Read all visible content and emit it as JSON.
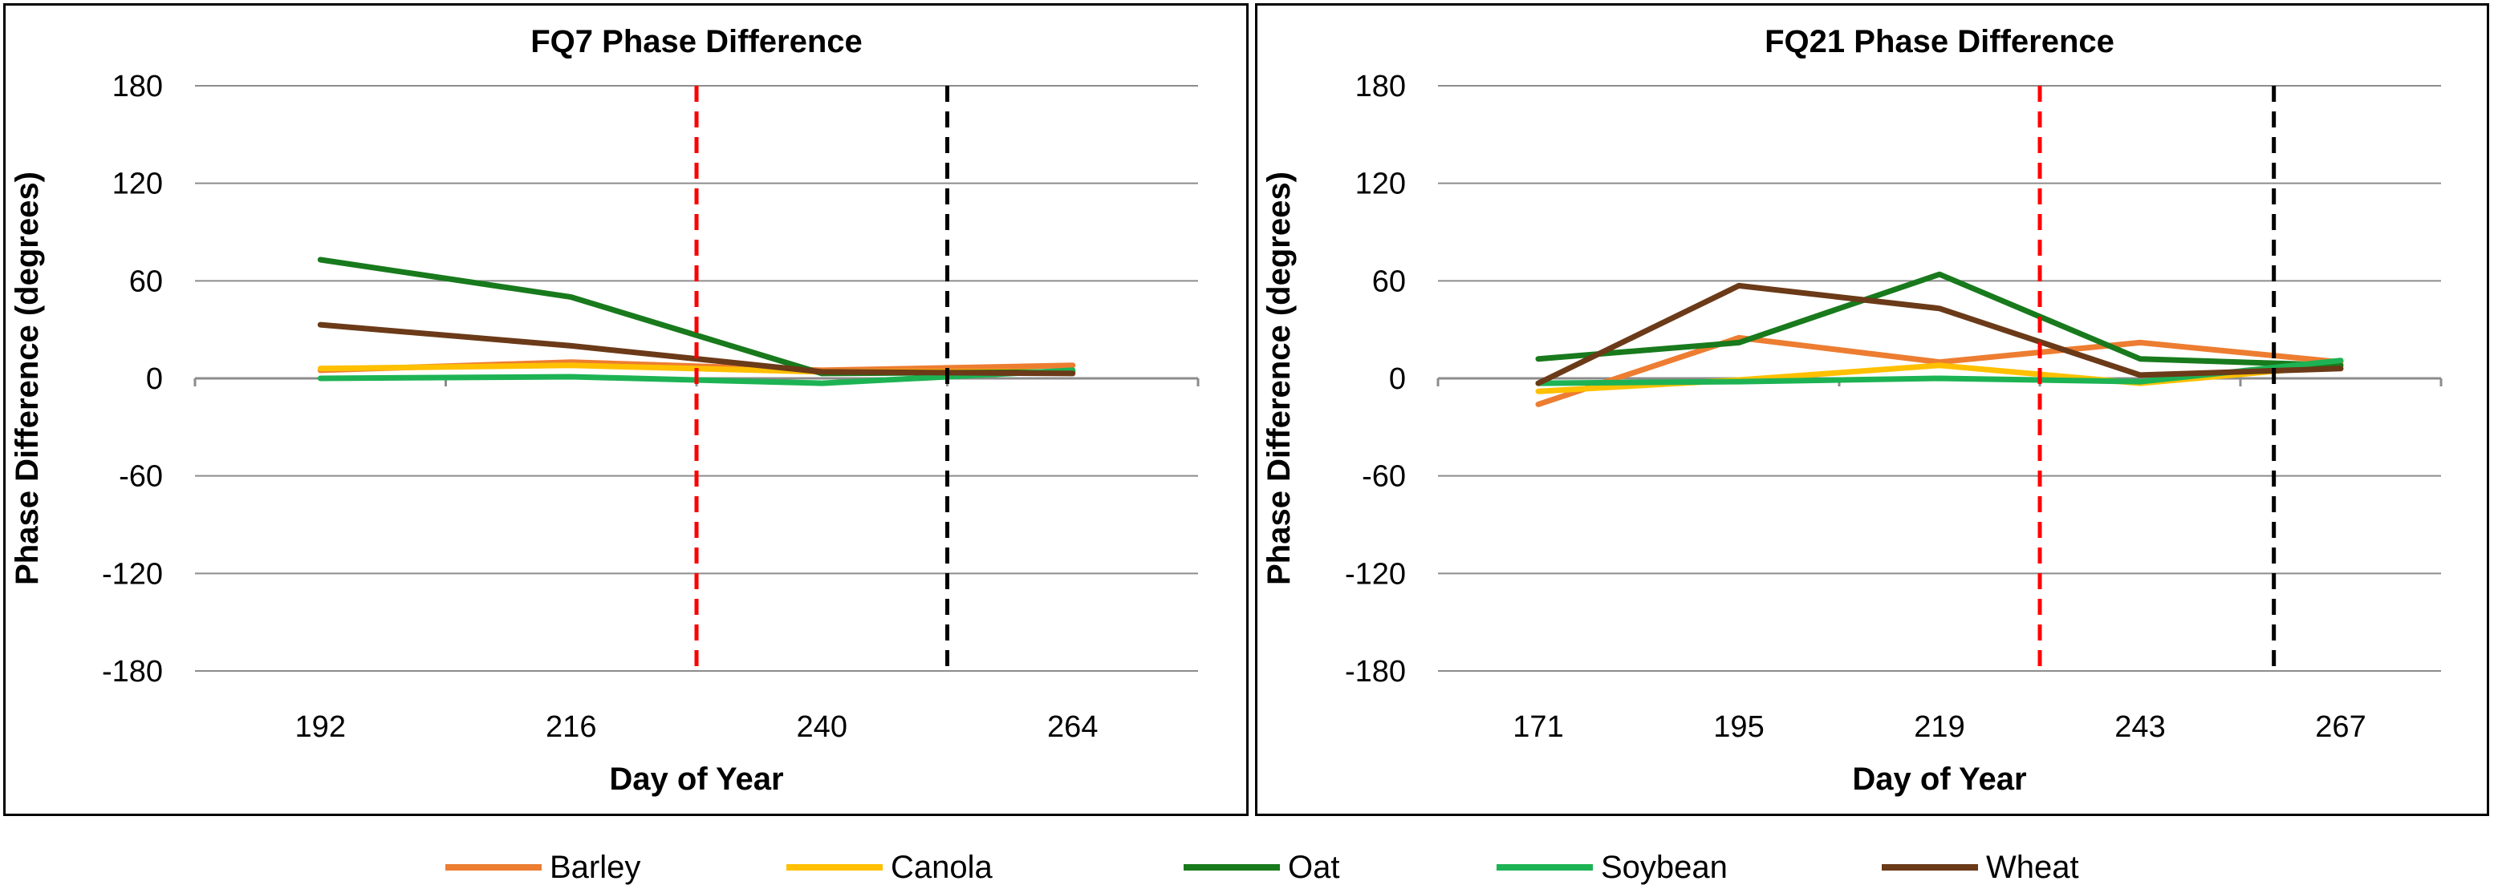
{
  "chart_data": [
    {
      "type": "line",
      "title": "FQ7 Phase Difference",
      "xlabel": "Day of Year",
      "ylabel": "Phase Difference (degrees)",
      "x": [
        192,
        216,
        240,
        264
      ],
      "x_tick_labels": [
        "192",
        "216",
        "240",
        "264"
      ],
      "ylim": [
        -180,
        180
      ],
      "y_ticks": [
        180,
        120,
        60,
        0,
        -60,
        -120,
        -180
      ],
      "y_tick_labels": [
        "180",
        "120",
        "60",
        "0",
        "-60",
        "-120",
        "-180"
      ],
      "reference_lines": [
        {
          "x": 228,
          "color": "#ff0000",
          "style": "dashed"
        },
        {
          "x": 252,
          "color": "#000000",
          "style": "dashed"
        }
      ],
      "series": [
        {
          "name": "Barley",
          "values": [
            5,
            10,
            5,
            8
          ]
        },
        {
          "name": "Canola",
          "values": [
            6,
            8,
            4,
            4
          ]
        },
        {
          "name": "Oat",
          "values": [
            73,
            50,
            3,
            4
          ]
        },
        {
          "name": "Soybean",
          "values": [
            0,
            1,
            -3,
            5
          ]
        },
        {
          "name": "Wheat",
          "values": [
            33,
            20,
            4,
            3
          ]
        }
      ]
    },
    {
      "type": "line",
      "title": "FQ21 Phase Difference",
      "xlabel": "Day of Year",
      "ylabel": "Phase Difference (degrees)",
      "x": [
        171,
        195,
        219,
        243,
        267
      ],
      "x_tick_labels": [
        "171",
        "195",
        "219",
        "243",
        "267"
      ],
      "ylim": [
        -180,
        180
      ],
      "y_ticks": [
        180,
        120,
        60,
        0,
        -60,
        -120,
        -180
      ],
      "y_tick_labels": [
        "180",
        "120",
        "60",
        "0",
        "-60",
        "-120",
        "-180"
      ],
      "reference_lines": [
        {
          "x": 231,
          "color": "#ff0000",
          "style": "dashed"
        },
        {
          "x": 259,
          "color": "#000000",
          "style": "dashed"
        }
      ],
      "series": [
        {
          "name": "Barley",
          "values": [
            -16,
            25,
            10,
            22,
            10
          ]
        },
        {
          "name": "Canola",
          "values": [
            -8,
            -1,
            8,
            -3,
            8
          ]
        },
        {
          "name": "Oat",
          "values": [
            12,
            22,
            64,
            12,
            8
          ]
        },
        {
          "name": "Soybean",
          "values": [
            -3,
            -2,
            0,
            -2,
            11
          ]
        },
        {
          "name": "Wheat",
          "values": [
            -3,
            57,
            43,
            2,
            6
          ]
        }
      ]
    }
  ],
  "legend": [
    {
      "label": "Barley",
      "color": "#ed7d31"
    },
    {
      "label": "Canola",
      "color": "#ffc000"
    },
    {
      "label": "Oat",
      "color": "#187a1c"
    },
    {
      "label": "Soybean",
      "color": "#1db354"
    },
    {
      "label": "Wheat",
      "color": "#6b3a18"
    }
  ]
}
